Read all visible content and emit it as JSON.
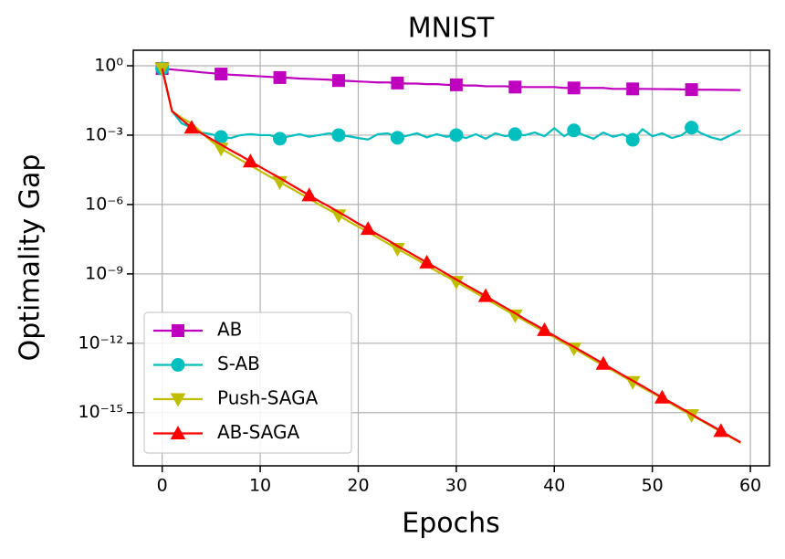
{
  "chart_data": {
    "type": "line",
    "title": "MNIST",
    "xlabel": "Epochs",
    "ylabel": "Optimality Gap",
    "log_y": true,
    "grid": true,
    "legend": "lower left",
    "xlim": [
      -2.95,
      61.95
    ],
    "xticks": [
      0,
      10,
      20,
      30,
      40,
      50,
      60
    ],
    "ylim": [
      5e-18,
      4.7
    ],
    "yticks": [
      {
        "value": 1,
        "label": "10⁰"
      },
      {
        "value": 0.001,
        "label": "10⁻³"
      },
      {
        "value": 1e-06,
        "label": "10⁻⁶"
      },
      {
        "value": 1e-09,
        "label": "10⁻⁹"
      },
      {
        "value": 1e-12,
        "label": "10⁻¹²"
      },
      {
        "value": 1e-15,
        "label": "10⁻¹⁵"
      }
    ],
    "x": [
      0,
      1,
      2,
      3,
      4,
      5,
      6,
      7,
      8,
      9,
      10,
      11,
      12,
      13,
      14,
      15,
      16,
      17,
      18,
      19,
      20,
      21,
      22,
      23,
      24,
      25,
      26,
      27,
      28,
      29,
      30,
      31,
      32,
      33,
      34,
      35,
      36,
      37,
      38,
      39,
      40,
      41,
      42,
      43,
      44,
      45,
      46,
      47,
      48,
      49,
      50,
      51,
      52,
      53,
      54,
      55,
      56,
      57,
      58,
      59
    ],
    "series": [
      {
        "name": "AB",
        "color": "#bf00bf",
        "marker": "square",
        "marker_start": 0,
        "marker_every": 6,
        "values": [
          0.76,
          0.69,
          0.63,
          0.58,
          0.52,
          0.48,
          0.44,
          0.41,
          0.39,
          0.37,
          0.35,
          0.33,
          0.31,
          0.3,
          0.28,
          0.27,
          0.26,
          0.25,
          0.23,
          0.22,
          0.21,
          0.2,
          0.19,
          0.19,
          0.18,
          0.17,
          0.17,
          0.16,
          0.16,
          0.15,
          0.15,
          0.14,
          0.14,
          0.13,
          0.13,
          0.13,
          0.12,
          0.12,
          0.12,
          0.12,
          0.12,
          0.11,
          0.11,
          0.11,
          0.11,
          0.11,
          0.1,
          0.1,
          0.1,
          0.1,
          0.099,
          0.098,
          0.097,
          0.095,
          0.093,
          0.092,
          0.092,
          0.091,
          0.09,
          0.089
        ]
      },
      {
        "name": "S-AB",
        "color": "#00bfbf",
        "marker": "circle",
        "marker_start": 0,
        "marker_every": 6,
        "values": [
          0.76,
          0.011,
          0.0032,
          0.0021,
          0.0013,
          0.0011,
          0.00083,
          0.00075,
          0.001,
          0.0011,
          0.001,
          0.001,
          0.0007,
          0.0009,
          0.0011,
          0.00085,
          0.001,
          0.0012,
          0.001,
          0.0009,
          0.00075,
          0.00065,
          0.0011,
          0.0012,
          0.00077,
          0.00095,
          0.0012,
          0.0008,
          0.0011,
          0.00085,
          0.001,
          0.00075,
          0.0011,
          0.0007,
          0.0012,
          0.0009,
          0.0011,
          0.001,
          0.0013,
          0.0009,
          0.002,
          0.0009,
          0.0016,
          0.001,
          0.0007,
          0.0013,
          0.00085,
          0.0011,
          0.00063,
          0.0018,
          0.0009,
          0.0012,
          0.00075,
          0.001,
          0.0021,
          0.0012,
          0.0008,
          0.00063,
          0.001,
          0.0016
        ]
      },
      {
        "name": "Push-SAGA",
        "color": "#bfbf00",
        "marker": "triangle-down",
        "marker_start": 0,
        "marker_every": 6,
        "values": [
          0.76,
          0.011,
          0.0056,
          0.0032,
          0.0013,
          0.00056,
          0.00026,
          0.00015,
          8.5e-05,
          4.9e-05,
          2.8e-05,
          1.6e-05,
          9.3e-06,
          5.4e-06,
          3.1e-06,
          1.8e-06,
          1e-06,
          5.9e-07,
          3.4e-07,
          1.9e-07,
          1.1e-07,
          6.5e-08,
          3.7e-08,
          2.1e-08,
          1.2e-08,
          7.1e-09,
          4.1e-09,
          2.3e-09,
          1.3e-09,
          7.8e-10,
          4.5e-10,
          2.6e-10,
          1.5e-10,
          8.5e-11,
          4.9e-11,
          2.8e-11,
          1.6e-11,
          9.3e-12,
          5.4e-12,
          3.1e-12,
          1.8e-12,
          1e-12,
          5.9e-13,
          3.4e-13,
          1.9e-13,
          1.1e-13,
          6.5e-14,
          3.7e-14,
          2.1e-14,
          1.2e-14,
          7.1e-15,
          4.1e-15,
          2.3e-15,
          1.3e-15,
          7.8e-16,
          4.5e-16,
          2.6e-16,
          1.5e-16,
          8.5e-17,
          4.9e-17
        ]
      },
      {
        "name": "AB-SAGA",
        "color": "#ff0000",
        "marker": "triangle-up",
        "marker_start": 3,
        "marker_every": 6,
        "values": [
          0.76,
          0.011,
          0.0047,
          0.0021,
          0.0012,
          0.00068,
          0.00039,
          0.00022,
          0.00013,
          7.3e-05,
          4.2e-05,
          2.4e-05,
          1.4e-05,
          7.8e-06,
          4.4e-06,
          2.5e-06,
          1.4e-06,
          8.3e-07,
          4.7e-07,
          2.7e-07,
          1.5e-07,
          8.8e-08,
          5e-08,
          2.9e-08,
          1.6e-08,
          9.4e-09,
          5.4e-09,
          3.1e-09,
          1.8e-09,
          1e-09,
          5.7e-10,
          3.3e-10,
          1.9e-10,
          1.1e-10,
          6.1e-11,
          3.5e-11,
          2e-11,
          1.1e-11,
          6.5e-12,
          3.7e-12,
          2.1e-12,
          1.2e-12,
          7e-13,
          4e-13,
          2.3e-13,
          1.3e-13,
          7.4e-14,
          4.2e-14,
          2.4e-14,
          1.4e-14,
          7.9e-15,
          4.5e-15,
          2.6e-15,
          1.5e-15,
          8.5e-16,
          4.8e-16,
          2.8e-16,
          1.6e-16,
          9e-17,
          5.2e-17
        ]
      }
    ]
  }
}
